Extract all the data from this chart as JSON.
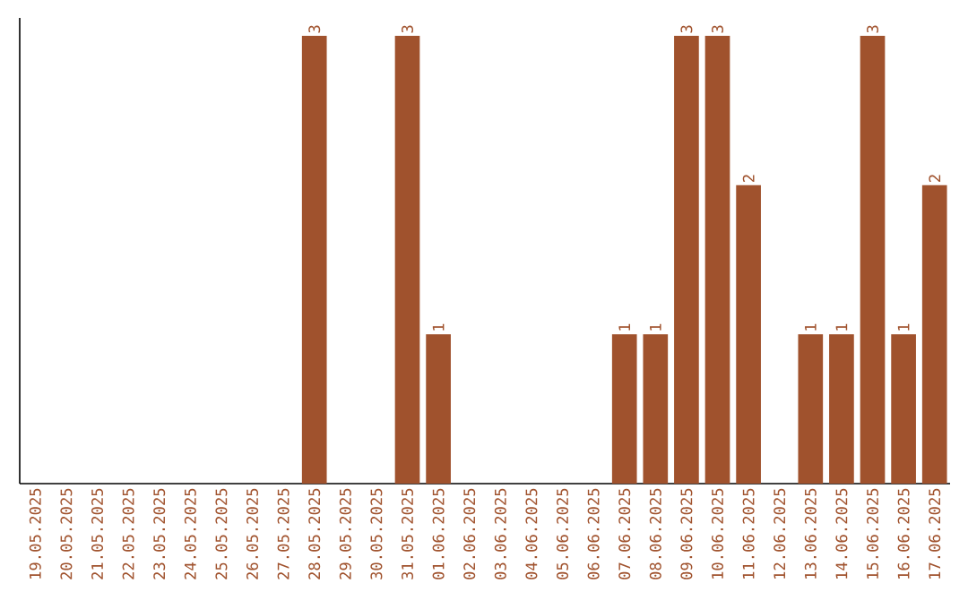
{
  "chart_data": {
    "type": "bar",
    "categories": [
      "19.05.2025",
      "20.05.2025",
      "21.05.2025",
      "22.05.2025",
      "23.05.2025",
      "24.05.2025",
      "25.05.2025",
      "26.05.2025",
      "27.05.2025",
      "28.05.2025",
      "29.05.2025",
      "30.05.2025",
      "31.05.2025",
      "01.06.2025",
      "02.06.2025",
      "03.06.2025",
      "04.06.2025",
      "05.06.2025",
      "06.06.2025",
      "07.06.2025",
      "08.06.2025",
      "09.06.2025",
      "10.06.2025",
      "11.06.2025",
      "12.06.2025",
      "13.06.2025",
      "14.06.2025",
      "15.06.2025",
      "16.06.2025",
      "17.06.2025"
    ],
    "values": [
      0,
      0,
      0,
      0,
      0,
      0,
      0,
      0,
      0,
      3,
      0,
      0,
      3,
      1,
      0,
      0,
      0,
      0,
      0,
      1,
      1,
      3,
      3,
      2,
      0,
      1,
      1,
      3,
      1,
      2
    ],
    "value_labels": [
      null,
      null,
      null,
      null,
      null,
      null,
      null,
      null,
      null,
      "3",
      null,
      null,
      "3",
      "1",
      null,
      null,
      null,
      null,
      null,
      "1",
      "1",
      "3",
      "3",
      "2",
      null,
      "1",
      "1",
      "3",
      "1",
      "2"
    ],
    "color": "#a0522d",
    "tick_labels": "x",
    "grid": false
  }
}
